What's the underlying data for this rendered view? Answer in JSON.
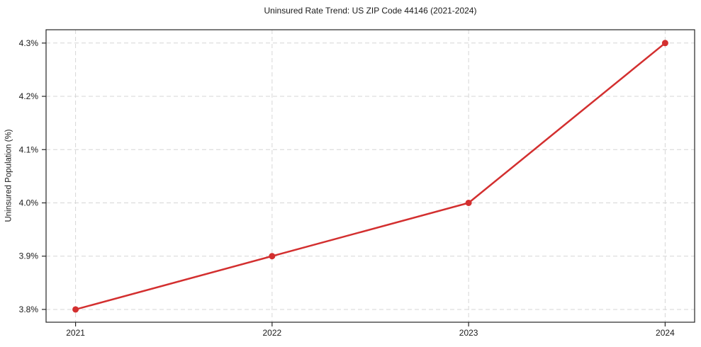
{
  "chart_data": {
    "type": "line",
    "title": "Uninsured Rate Trend: US ZIP Code 44146 (2021-2024)",
    "xlabel": "",
    "ylabel": "Uninsured Population (%)",
    "x": [
      2021,
      2022,
      2023,
      2024
    ],
    "series": [
      {
        "name": "Uninsured Population (%)",
        "values": [
          3.8,
          3.9,
          4.0,
          4.3
        ],
        "color": "#d32f2f",
        "marker": "circle",
        "line_width": 2.5,
        "marker_radius": 4.5
      }
    ],
    "xticks": {
      "values": [
        2021,
        2022,
        2023,
        2024
      ],
      "labels": [
        "2021",
        "2022",
        "2023",
        "2024"
      ]
    },
    "yticks": {
      "values": [
        3.8,
        3.9,
        4.0,
        4.1,
        4.2,
        4.3
      ],
      "labels": [
        "3.8%",
        "3.9%",
        "4.0%",
        "4.1%",
        "4.2%",
        "4.3%"
      ]
    },
    "xlim": [
      2020.85,
      2024.15
    ],
    "ylim": [
      3.776,
      4.325
    ],
    "grid": true,
    "grid_style": "dashed",
    "legend": "none",
    "colors": {
      "background": "#ffffff",
      "grid": "#d6d6d6",
      "spine": "#262626",
      "text": "#1a1a1a"
    }
  }
}
